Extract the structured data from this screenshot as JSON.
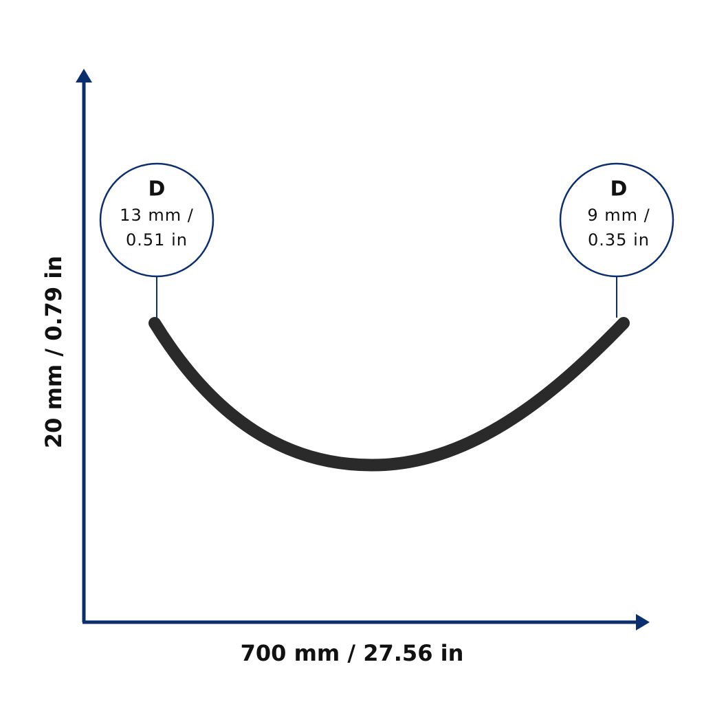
{
  "axes": {
    "x_label": "700 mm / 27.56 in",
    "y_label": "20 mm / 0.79 in"
  },
  "callouts": [
    {
      "label": "D",
      "lines": [
        "13 mm /",
        "0.51 in"
      ]
    },
    {
      "label": "D",
      "lines": [
        "9 mm /",
        "0.35 in"
      ]
    }
  ]
}
